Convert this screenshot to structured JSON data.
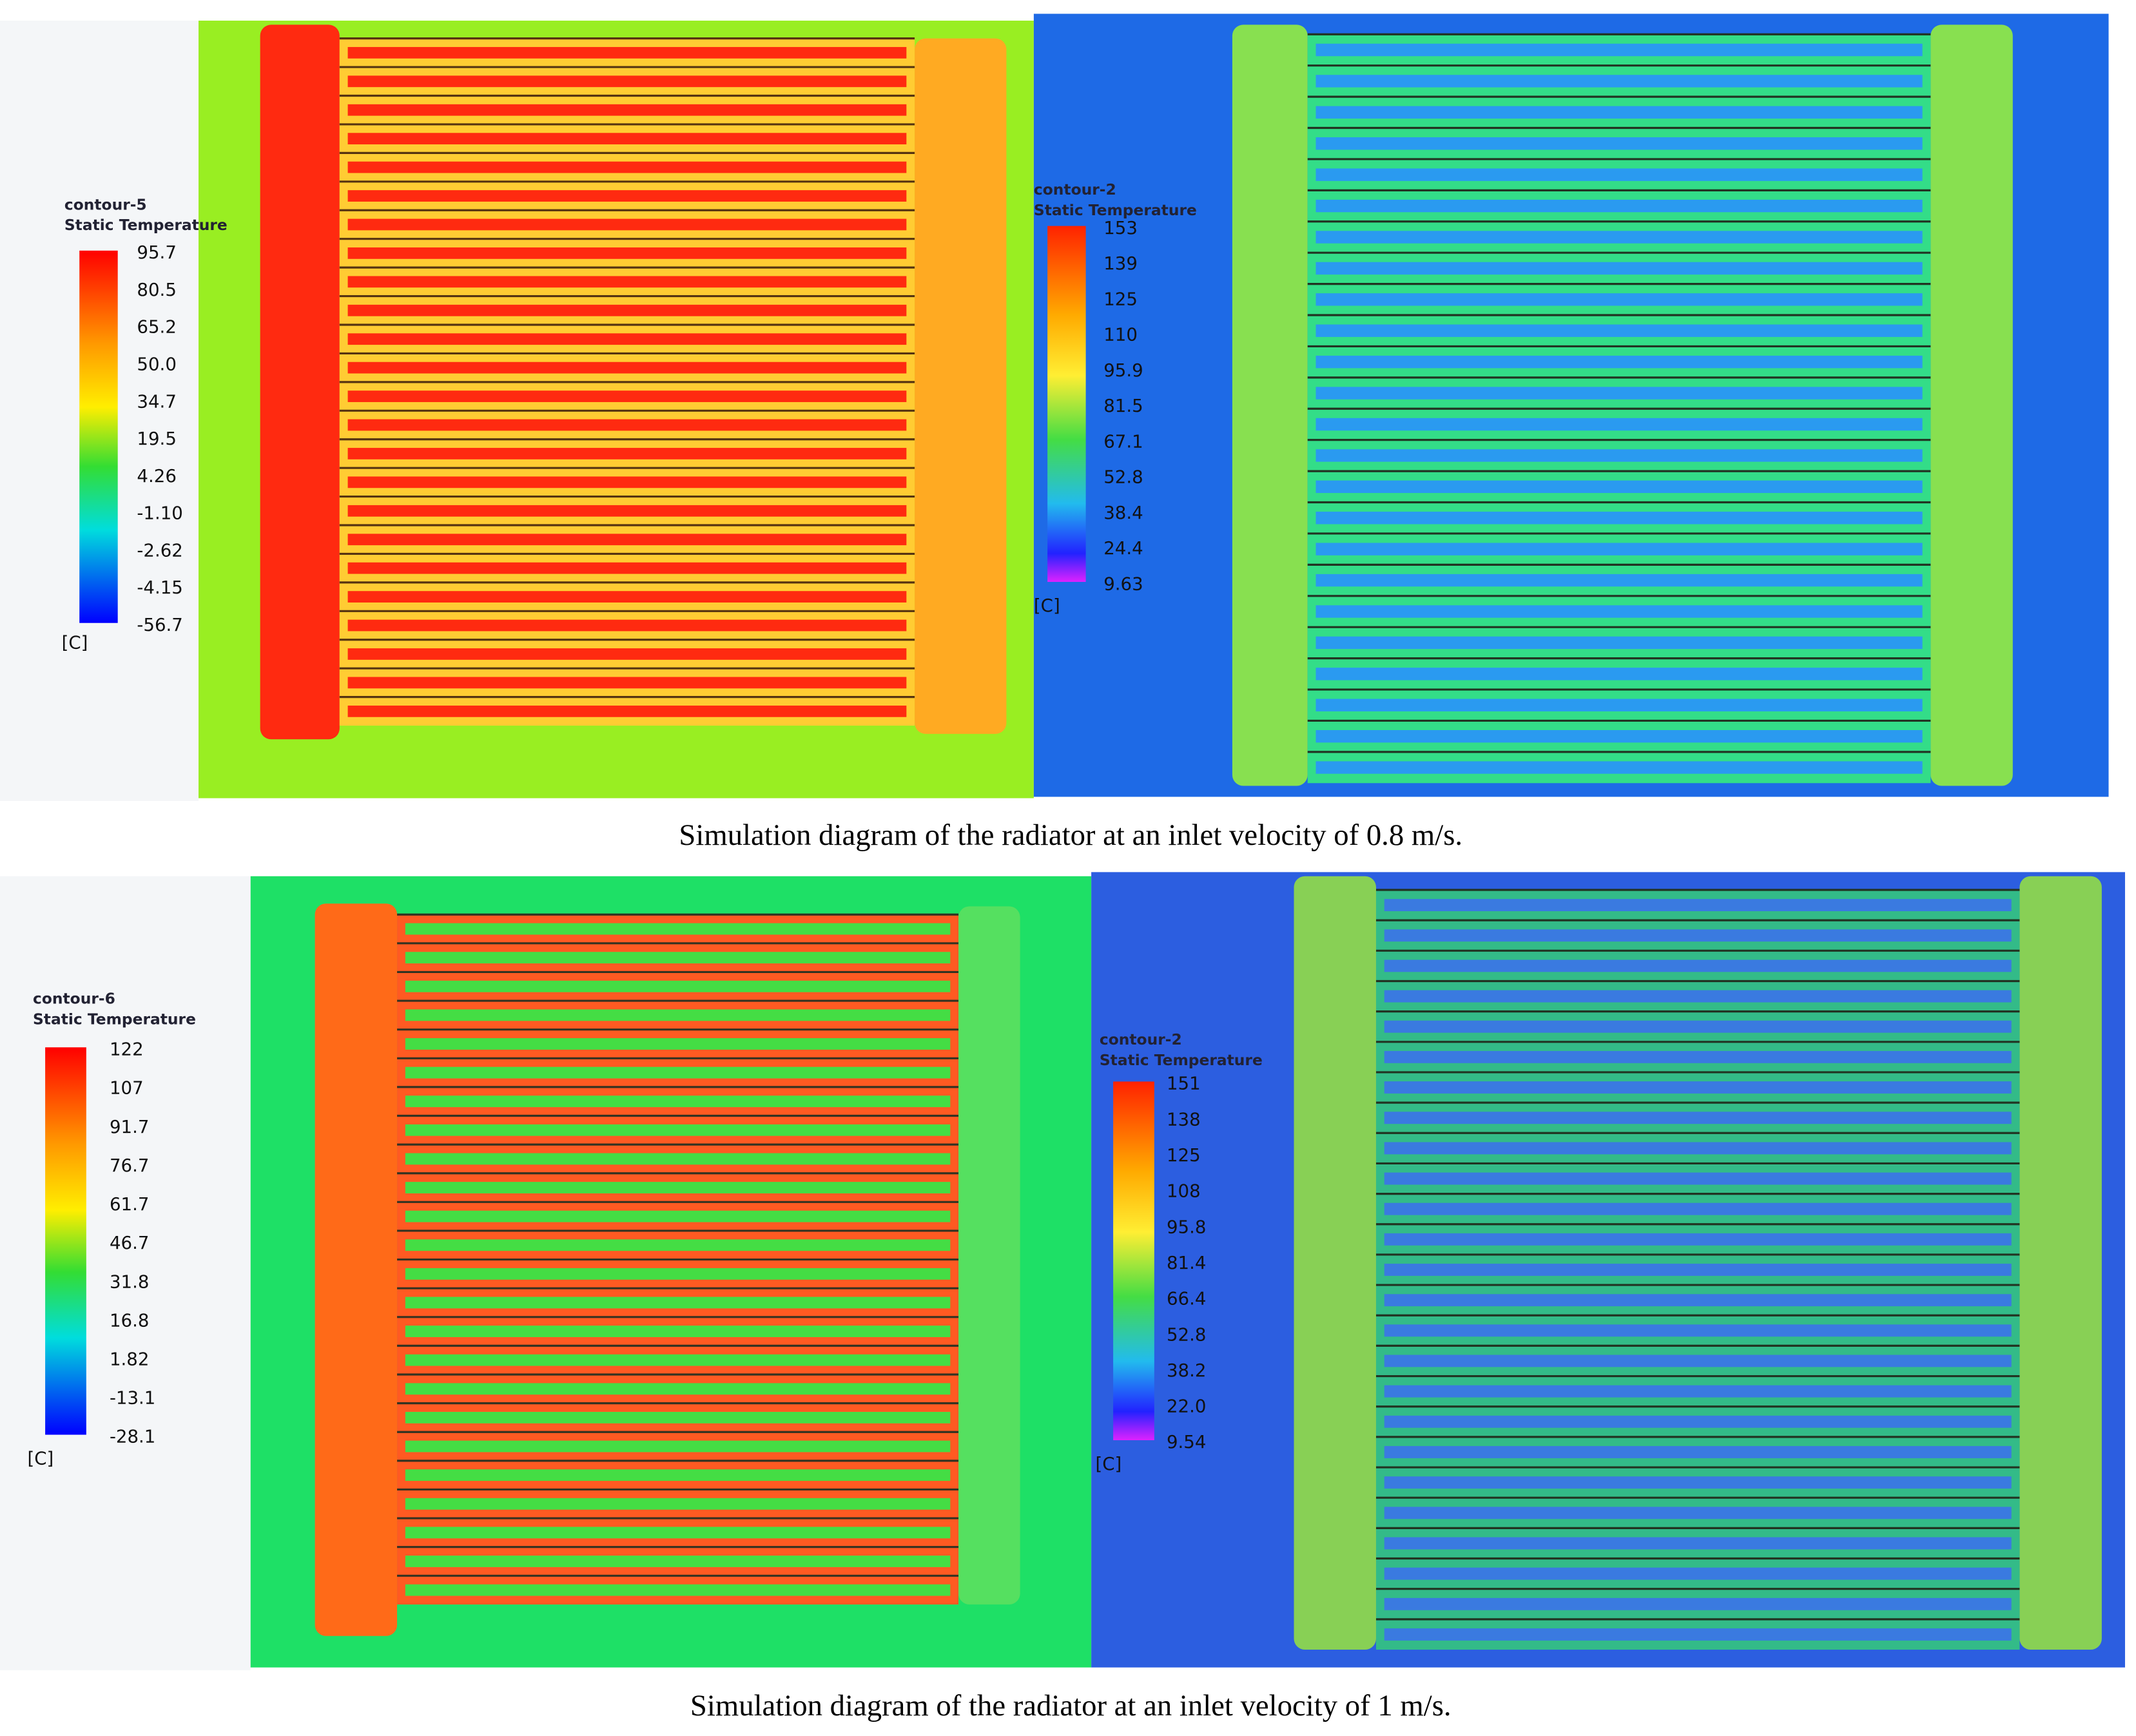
{
  "panels": [
    {
      "legend": {
        "title": "contour-5",
        "quantity": "Static Temperature",
        "labels": [
          "95.7",
          "80.5",
          "65.2",
          "50.0",
          "34.7",
          "19.5",
          "4.26",
          "-1.10",
          "-2.62",
          "-4.15",
          "-56.7"
        ],
        "unit": "[C]"
      }
    },
    {
      "legend": {
        "title": "contour-2",
        "quantity": "Static Temperature",
        "labels": [
          "153",
          "139",
          "125",
          "110",
          "95.9",
          "81.5",
          "67.1",
          "52.8",
          "38.4",
          "24.4",
          "9.63"
        ],
        "unit": "[C]"
      }
    },
    {
      "legend": {
        "title": "contour-6",
        "quantity": "Static Temperature",
        "labels": [
          "122",
          "107",
          "91.7",
          "76.7",
          "61.7",
          "46.7",
          "31.8",
          "16.8",
          "1.82",
          "-13.1",
          "-28.1"
        ],
        "unit": "[C]"
      }
    },
    {
      "legend": {
        "title": "contour-2",
        "quantity": "Static Temperature",
        "labels": [
          "151",
          "138",
          "125",
          "108",
          "95.8",
          "81.4",
          "66.4",
          "52.8",
          "38.2",
          "22.0",
          "9.54"
        ],
        "unit": "[C]"
      }
    }
  ],
  "captions": [
    "Simulation diagram of the radiator at an inlet velocity of 0.8 m/s.",
    "Simulation diagram of the radiator at an inlet velocity of 1 m/s."
  ]
}
